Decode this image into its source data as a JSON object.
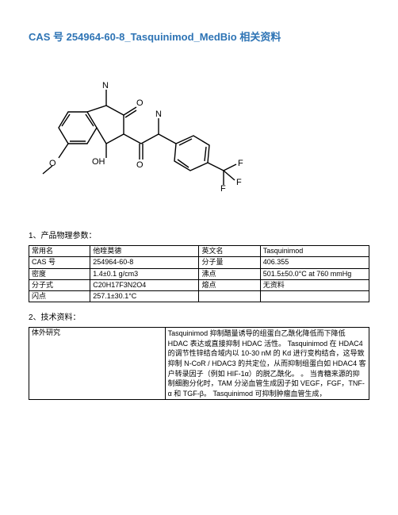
{
  "title": "CAS 号 254964-60-8_Tasquinimod_MedBio 相关资料",
  "section1_label": "1、产品物理参数：",
  "section2_label": "2、技术资料：",
  "table1": {
    "rows": [
      [
        "常用名",
        "他喹莫德",
        "英文名",
        "Tasquinimod"
      ],
      [
        "CAS 号",
        "254964-60-8",
        "分子量",
        "406.355"
      ],
      [
        "密度",
        "1.4±0.1 g/cm3",
        "沸点",
        "501.5±50.0°C at 760 mmHg"
      ],
      [
        "分子式",
        "C20H17F3N2O4",
        "熔点",
        "无资料"
      ],
      [
        "闪点",
        "257.1±30.1°C",
        "",
        ""
      ]
    ]
  },
  "table2": {
    "row": [
      "体外研究",
      "Tasquinimod 抑制醋量诱导的组蛋白乙酰化降低而下降低 HDAC 表达或直接抑制 HDAC 活性。 Tasquinimod 在 HDAC4 的调节性锌结合域内以 10-30 nM 的 Kd 进行变构结合，这导致抑制 N-CoR / HDAC3 的共定位，从而抑制组蛋白如 HDAC4 客户转录因子（例如 HIF-1α）的脱乙酰化。 。 当青糖来源的抑制细胞分化时，TAM 分泌血管生成因子如 VEGF，FGF，TNF-α 和 TGF-β。 Tasquinimod 可抑制肿瘤血管生成，"
    ]
  },
  "structure_colors": {
    "bond": "#000000",
    "atom_O_text": "#000000",
    "atom_N_text": "#000000",
    "atom_F_text": "#000000"
  }
}
